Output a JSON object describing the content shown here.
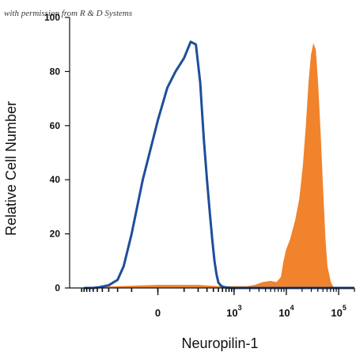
{
  "watermark": "with permission from R & D Systems",
  "chart_data": {
    "type": "area",
    "xlabel": "Neuropilin-1",
    "ylabel": "Relative Cell Number",
    "x_scale": "biexponential",
    "ylim": [
      0,
      100
    ],
    "yticks": [
      0,
      20,
      40,
      60,
      80,
      100
    ],
    "xticks": [
      {
        "value": 0,
        "base": "0",
        "exp": ""
      },
      {
        "value": 1000,
        "base": "10",
        "exp": "3"
      },
      {
        "value": 10000,
        "base": "10",
        "exp": "4"
      },
      {
        "value": 100000,
        "base": "10",
        "exp": "5"
      }
    ],
    "grid": false,
    "legend": "none",
    "series": [
      {
        "style": "outline",
        "color": "#1f4e9a",
        "x": [
          -900,
          -600,
          -450,
          -300,
          -200,
          -150,
          -100,
          -50,
          0,
          30,
          60,
          100,
          140,
          180,
          220,
          260,
          300,
          340,
          380,
          420,
          460,
          500,
          550,
          600,
          700,
          900,
          1500,
          5000,
          20000,
          200000
        ],
        "y": [
          0,
          0,
          0.3,
          1,
          3,
          8,
          20,
          40,
          62,
          74,
          80,
          85,
          91,
          90,
          76,
          55,
          40,
          28,
          18,
          10,
          5,
          2,
          1,
          0.5,
          0.2,
          0,
          0,
          0,
          0,
          0
        ]
      },
      {
        "style": "filled",
        "color": "#f0832b",
        "x": [
          -900,
          -400,
          -200,
          0,
          200,
          500,
          1000,
          1800,
          2500,
          3500,
          5000,
          6500,
          8000,
          9000,
          10000,
          12000,
          15000,
          18000,
          21000,
          24000,
          27000,
          30000,
          33000,
          36000,
          40000,
          45000,
          50000,
          55000,
          60000,
          70000,
          80000,
          200000
        ],
        "y": [
          0,
          0.3,
          0.5,
          1,
          1,
          0.5,
          0.5,
          0.5,
          1,
          2,
          2.5,
          2,
          4,
          10,
          14,
          18,
          25,
          33,
          45,
          60,
          76,
          86,
          90,
          88,
          75,
          55,
          35,
          18,
          8,
          2,
          0,
          0
        ]
      }
    ]
  }
}
